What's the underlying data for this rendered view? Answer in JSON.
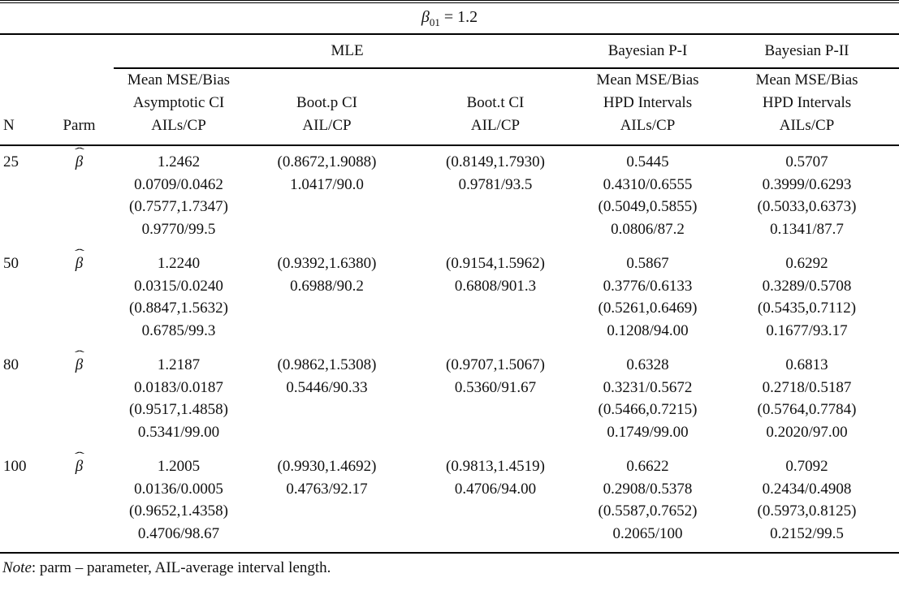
{
  "title": {
    "symbol": "β",
    "subscript": "01",
    "rest": " = 1.2"
  },
  "groups": {
    "mle": "MLE",
    "bayes1": "Bayesian P-I",
    "bayes2": "Bayesian P-II"
  },
  "header": {
    "n": "N",
    "parm": "Parm",
    "mle_main": [
      "Mean MSE/Bias",
      "Asymptotic CI",
      "AILs/CP"
    ],
    "boot_p": [
      "Boot.p CI",
      "AIL/CP"
    ],
    "boot_t": [
      "Boot.t CI",
      "AIL/CP"
    ],
    "bayes1": [
      "Mean MSE/Bias",
      "HPD Intervals",
      "AILs/CP"
    ],
    "bayes2": [
      "Mean MSE/Bias",
      "HPD Intervals",
      "AILs/CP"
    ]
  },
  "parm_symbol": "β",
  "rows": [
    {
      "n": "25",
      "mle_main": [
        "1.2462",
        "0.0709/0.0462",
        "(0.7577,1.7347)",
        "0.9770/99.5"
      ],
      "boot_p": [
        "(0.8672,1.9088)",
        "1.0417/90.0"
      ],
      "boot_t": [
        "(0.8149,1.7930)",
        "0.9781/93.5"
      ],
      "bayes1": [
        "0.5445",
        "0.4310/0.6555",
        "(0.5049,0.5855)",
        "0.0806/87.2"
      ],
      "bayes2": [
        "0.5707",
        "0.3999/0.6293",
        "(0.5033,0.6373)",
        "0.1341/87.7"
      ]
    },
    {
      "n": "50",
      "mle_main": [
        "1.2240",
        "0.0315/0.0240",
        "(0.8847,1.5632)",
        "0.6785/99.3"
      ],
      "boot_p": [
        "(0.9392,1.6380)",
        "0.6988/90.2"
      ],
      "boot_t": [
        "(0.9154,1.5962)",
        "0.6808/901.3"
      ],
      "bayes1": [
        "0.5867",
        "0.3776/0.6133",
        "(0.5261,0.6469)",
        "0.1208/94.00"
      ],
      "bayes2": [
        "0.6292",
        "0.3289/0.5708",
        "(0.5435,0.7112)",
        "0.1677/93.17"
      ]
    },
    {
      "n": "80",
      "mle_main": [
        "1.2187",
        "0.0183/0.0187",
        "(0.9517,1.4858)",
        "0.5341/99.00"
      ],
      "boot_p": [
        "(0.9862,1.5308)",
        "0.5446/90.33"
      ],
      "boot_t": [
        "(0.9707,1.5067)",
        "0.5360/91.67"
      ],
      "bayes1": [
        "0.6328",
        "0.3231/0.5672",
        "(0.5466,0.7215)",
        "0.1749/99.00"
      ],
      "bayes2": [
        "0.6813",
        "0.2718/0.5187",
        "(0.5764,0.7784)",
        "0.2020/97.00"
      ]
    },
    {
      "n": "100",
      "mle_main": [
        "1.2005",
        "0.0136/0.0005",
        "(0.9652,1.4358)",
        "0.4706/98.67"
      ],
      "boot_p": [
        "(0.9930,1.4692)",
        "0.4763/92.17"
      ],
      "boot_t": [
        "(0.9813,1.4519)",
        "0.4706/94.00"
      ],
      "bayes1": [
        "0.6622",
        "0.2908/0.5378",
        "(0.5587,0.7652)",
        "0.2065/100"
      ],
      "bayes2": [
        "0.7092",
        "0.2434/0.4908",
        "(0.5973,0.8125)",
        "0.2152/99.5"
      ]
    }
  ],
  "note": {
    "label": "Note",
    "text": ": parm – parameter, AIL-average interval length."
  }
}
